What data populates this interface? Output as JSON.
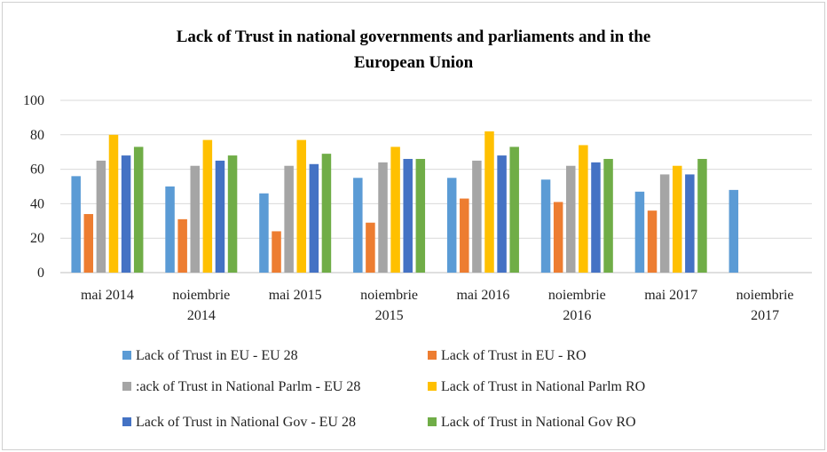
{
  "chart_data": {
    "type": "bar",
    "title_lines": [
      "Lack of Trust in national governments and parliaments and in the",
      "European Union"
    ],
    "xlabel": "",
    "ylabel": "",
    "ylim": [
      0,
      100
    ],
    "yticks": [
      0,
      20,
      40,
      60,
      80,
      100
    ],
    "grid": true,
    "legend_position": "bottom",
    "categories": [
      [
        "mai 2014"
      ],
      [
        "noiembrie",
        "2014"
      ],
      [
        "mai 2015"
      ],
      [
        "noiembrie",
        "2015"
      ],
      [
        "mai 2016"
      ],
      [
        "noiembrie",
        "2016"
      ],
      [
        "mai 2017"
      ],
      [
        "noiembrie",
        "2017"
      ]
    ],
    "series": [
      {
        "name": "Lack of Trust in EU - EU 28",
        "color": "#5b9bd5",
        "values": [
          56,
          50,
          46,
          55,
          55,
          54,
          47,
          48
        ]
      },
      {
        "name": "Lack of Trust in EU - RO",
        "color": "#ed7d31",
        "values": [
          34,
          31,
          24,
          29,
          43,
          41,
          36,
          null
        ]
      },
      {
        "name": ":ack of Trust in National Parlm - EU 28",
        "color": "#a5a5a5",
        "values": [
          65,
          62,
          62,
          64,
          65,
          62,
          57,
          null
        ]
      },
      {
        "name": "Lack of Trust in National Parlm RO",
        "color": "#ffc000",
        "values": [
          80,
          77,
          77,
          73,
          82,
          74,
          62,
          null
        ]
      },
      {
        "name": "Lack of Trust in National Gov - EU 28",
        "color": "#4472c4",
        "values": [
          68,
          65,
          63,
          66,
          68,
          64,
          57,
          null
        ]
      },
      {
        "name": "Lack of Trust in National Gov RO",
        "color": "#70ad47",
        "values": [
          73,
          68,
          69,
          66,
          73,
          66,
          66,
          null
        ]
      }
    ]
  }
}
